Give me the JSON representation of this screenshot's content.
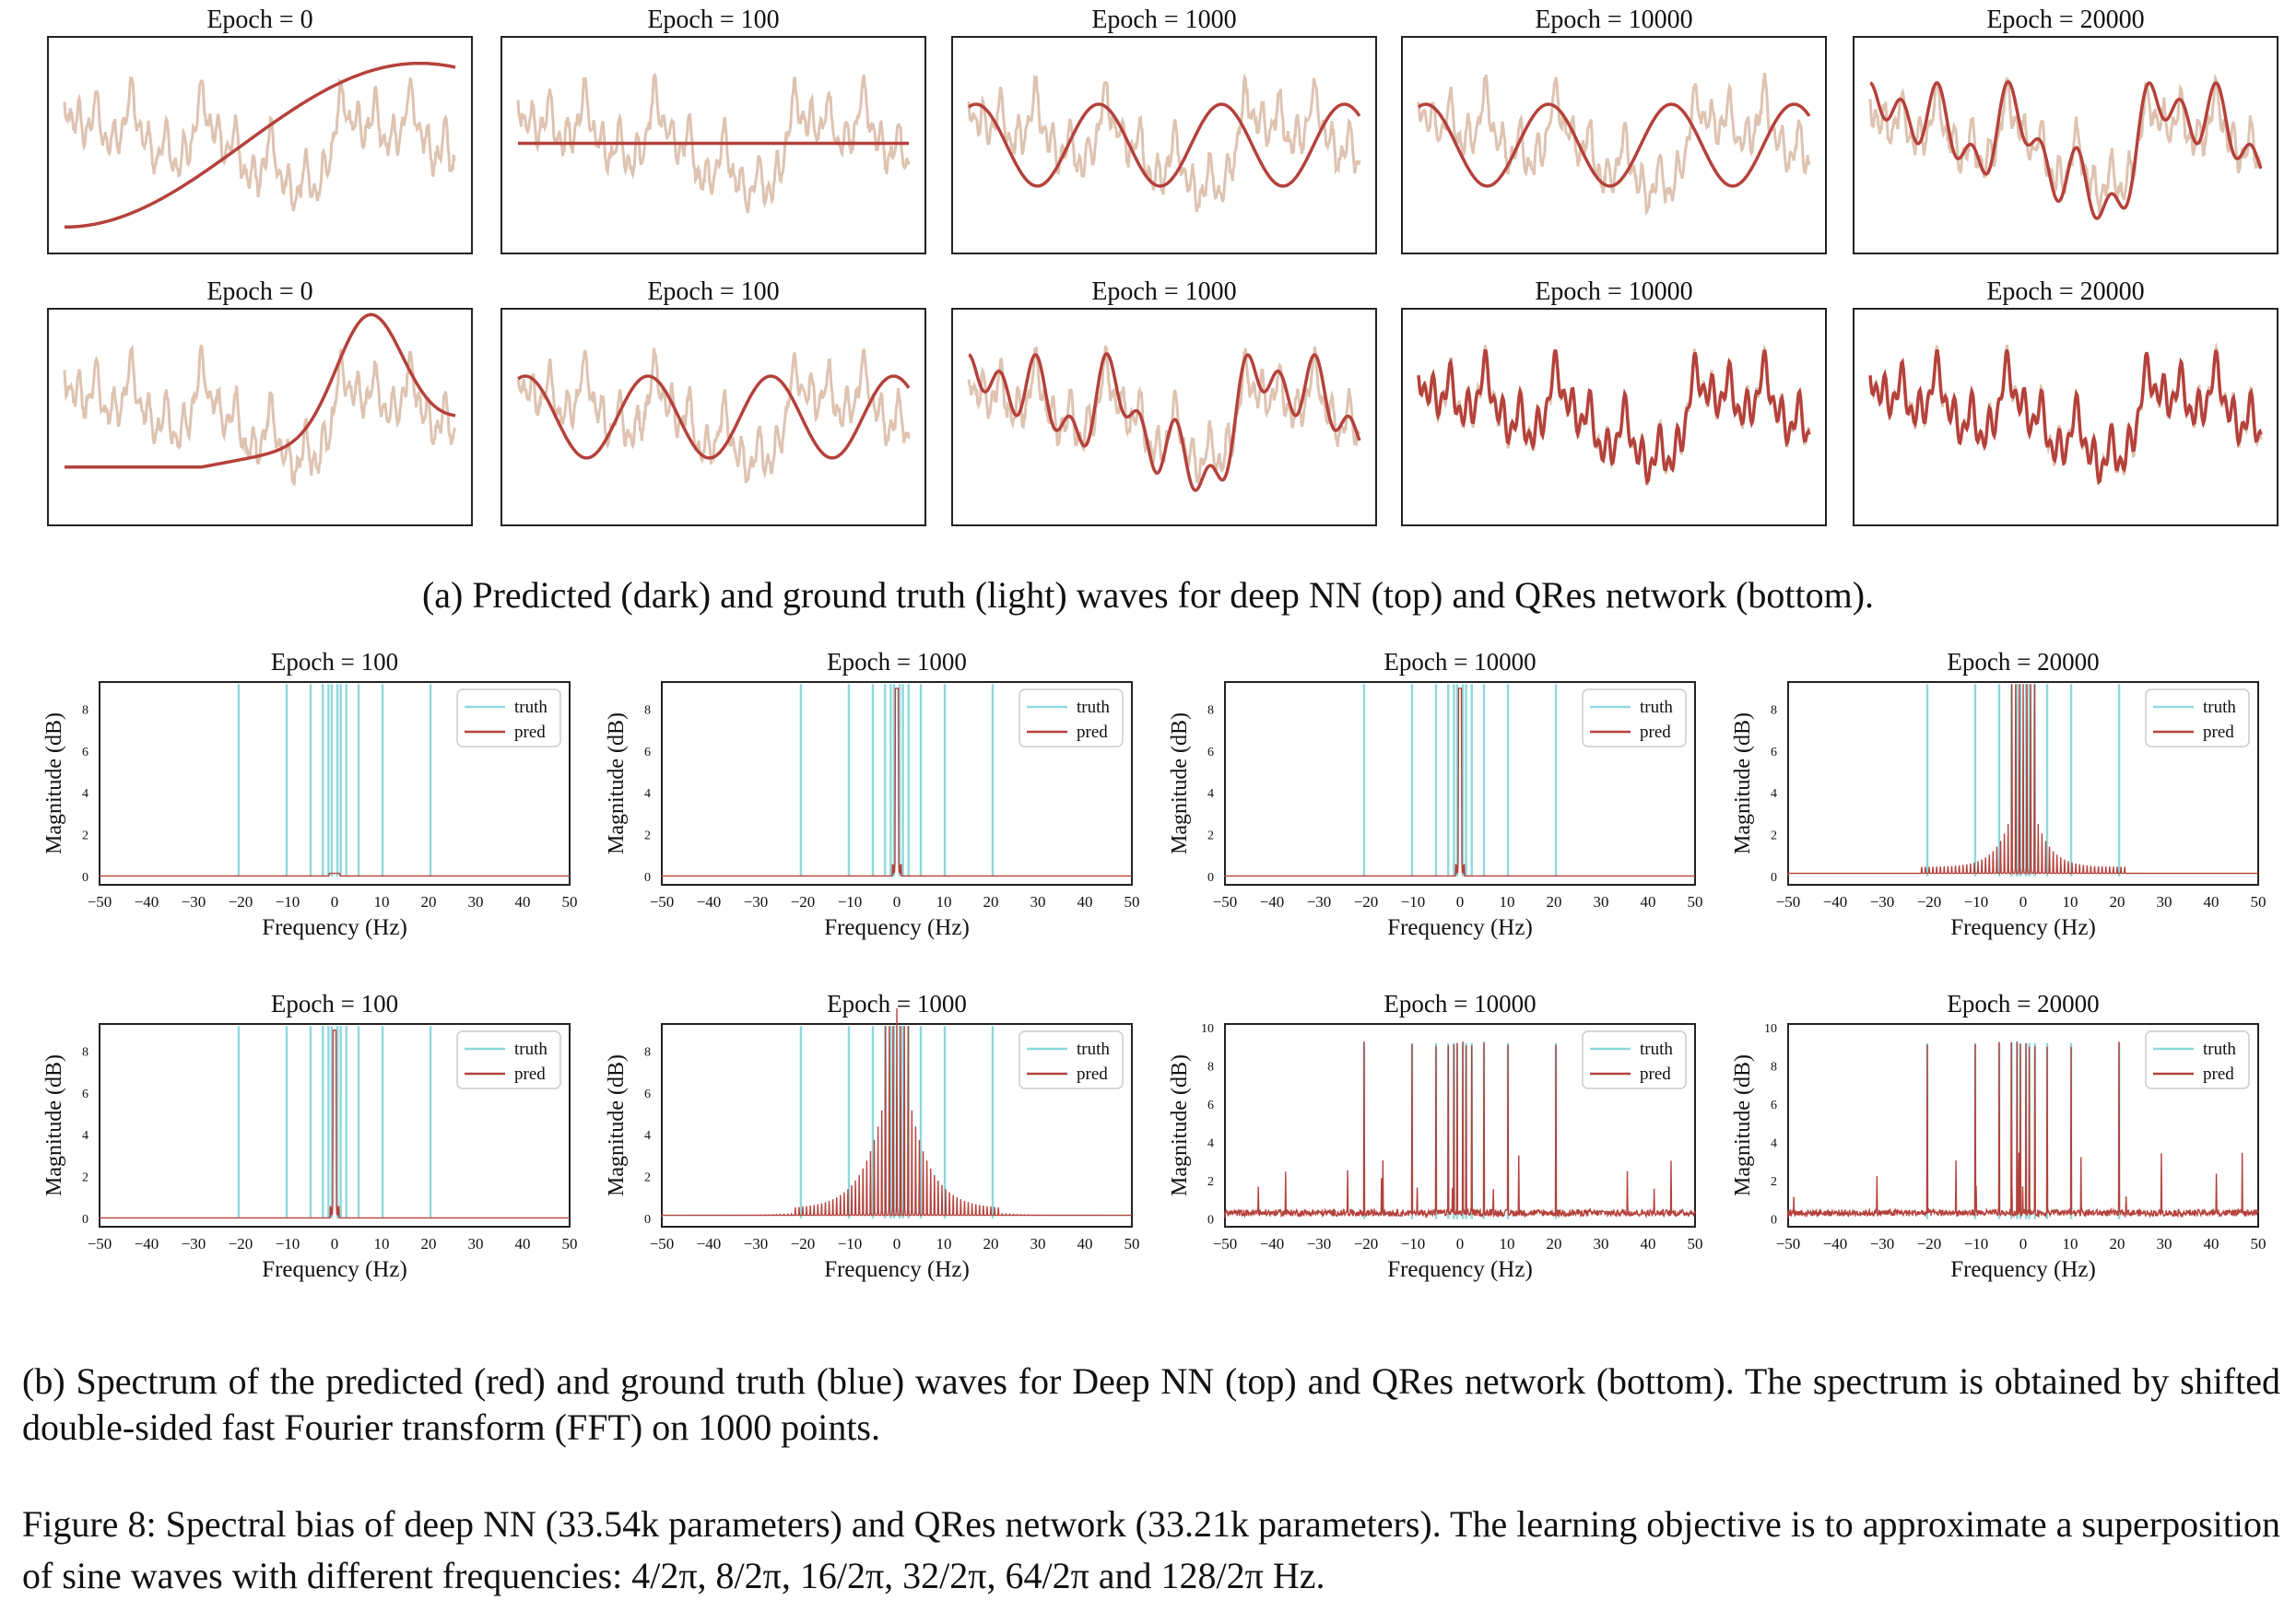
{
  "colors": {
    "truth_wave": "#dec3b1",
    "pred_wave": "#b5413b",
    "truth_spec": "#8fd8dc",
    "pred_spec": "#b5413b",
    "frame": "#222222"
  },
  "waves": {
    "top_row": [
      {
        "title": "Epoch = 0",
        "pred_kind": "bigsine"
      },
      {
        "title": "Epoch = 100",
        "pred_kind": "flat"
      },
      {
        "title": "Epoch = 1000",
        "pred_kind": "sine6"
      },
      {
        "title": "Epoch = 10000",
        "pred_kind": "sine6"
      },
      {
        "title": "Epoch = 20000",
        "pred_kind": "partial"
      }
    ],
    "bottom_row": [
      {
        "title": "Epoch = 0",
        "pred_kind": "bump"
      },
      {
        "title": "Epoch = 100",
        "pred_kind": "sine6"
      },
      {
        "title": "Epoch = 1000",
        "pred_kind": "partial"
      },
      {
        "title": "Epoch = 10000",
        "pred_kind": "full"
      },
      {
        "title": "Epoch = 20000",
        "pred_kind": "full"
      }
    ]
  },
  "chart_data": {
    "type": "line",
    "xlabel": "Frequency (Hz)",
    "ylabel": "Magnitude (dB)",
    "xlim": [
      -50,
      50
    ],
    "xticks": [
      -50,
      -40,
      -30,
      -20,
      -10,
      0,
      10,
      20,
      30,
      40,
      50
    ],
    "legend": {
      "position": "top-right",
      "entries": [
        "truth",
        "pred"
      ]
    },
    "truth_frequencies_hz": [
      -20.4,
      -10.2,
      -5.1,
      -2.5,
      -1.3,
      -0.6,
      0.6,
      1.3,
      2.5,
      5.1,
      10.2,
      20.4
    ],
    "top_row": [
      {
        "title": "Epoch = 100",
        "yticks": [
          0,
          2,
          4,
          6,
          8
        ],
        "ylim": [
          -0.4,
          9.3
        ],
        "pred_level": "tiny"
      },
      {
        "title": "Epoch = 1000",
        "yticks": [
          0,
          2,
          4,
          6,
          8
        ],
        "ylim": [
          -0.4,
          9.3
        ],
        "pred_level": "center"
      },
      {
        "title": "Epoch = 10000",
        "yticks": [
          0,
          2,
          4,
          6,
          8
        ],
        "ylim": [
          -0.4,
          9.3
        ],
        "pred_level": "center"
      },
      {
        "title": "Epoch = 20000",
        "yticks": [
          0,
          2,
          4,
          6,
          8
        ],
        "ylim": [
          -0.4,
          9.3
        ],
        "pred_level": "comb_mid"
      }
    ],
    "bottom_row": [
      {
        "title": "Epoch = 100",
        "yticks": [
          0,
          2,
          4,
          6,
          8
        ],
        "ylim": [
          -0.4,
          9.3
        ],
        "pred_level": "center"
      },
      {
        "title": "Epoch = 1000",
        "yticks": [
          0,
          2,
          4,
          6,
          8
        ],
        "ylim": [
          -0.4,
          9.3
        ],
        "pred_level": "comb_wide"
      },
      {
        "title": "Epoch = 10000",
        "yticks": [
          0,
          2,
          4,
          6,
          8,
          10
        ],
        "ylim": [
          -0.4,
          10.2
        ],
        "pred_level": "full"
      },
      {
        "title": "Epoch = 20000",
        "yticks": [
          0,
          2,
          4,
          6,
          8,
          10
        ],
        "ylim": [
          -0.4,
          10.2
        ],
        "pred_level": "full"
      }
    ]
  },
  "captions": {
    "a": "(a) Predicted (dark) and ground truth (light) waves for deep NN (top) and QRes network (bottom).",
    "b": "(b) Spectrum of the predicted (red) and ground truth (blue) waves for Deep NN (top) and QRes network (bottom). The spectrum is obtained by shifted double-sided fast Fourier transform (FFT) on 1000 points.",
    "figure": "Figure 8: Spectral bias of deep NN (33.54k parameters) and QRes network (33.21k parameters). The learning objective is to approximate a superposition of sine waves with different frequencies: 4/2π, 8/2π, 16/2π, 32/2π, 64/2π and 128/2π Hz."
  }
}
